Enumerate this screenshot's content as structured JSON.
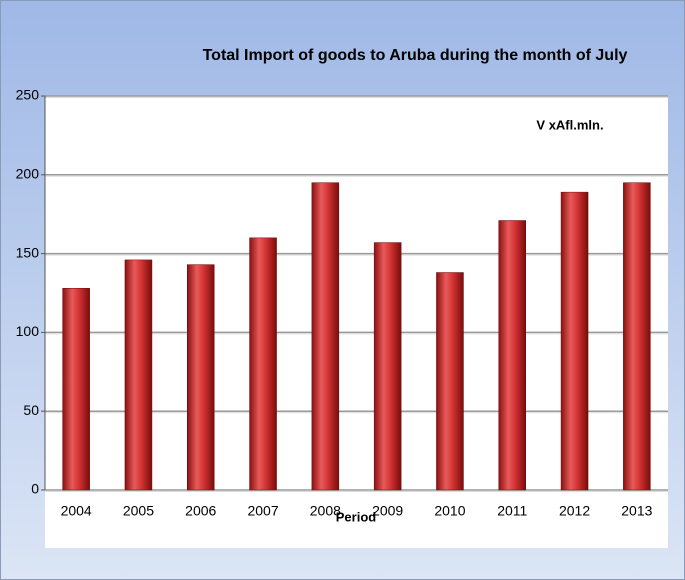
{
  "chart_data": {
    "type": "bar",
    "title": "Total Import of goods to Aruba during the month of July",
    "annotation": "V xAfl.mln.",
    "x_label": "Period",
    "categories": [
      "2004",
      "2005",
      "2006",
      "2007",
      "2008",
      "2009",
      "2010",
      "2011",
      "2012",
      "2013"
    ],
    "values": [
      128,
      146,
      143,
      160,
      195,
      157,
      138,
      171,
      189,
      195
    ],
    "color": "#d03030",
    "ylim": [
      0,
      250
    ],
    "yticks": [
      0,
      50,
      100,
      150,
      200,
      250
    ],
    "grid": true
  }
}
